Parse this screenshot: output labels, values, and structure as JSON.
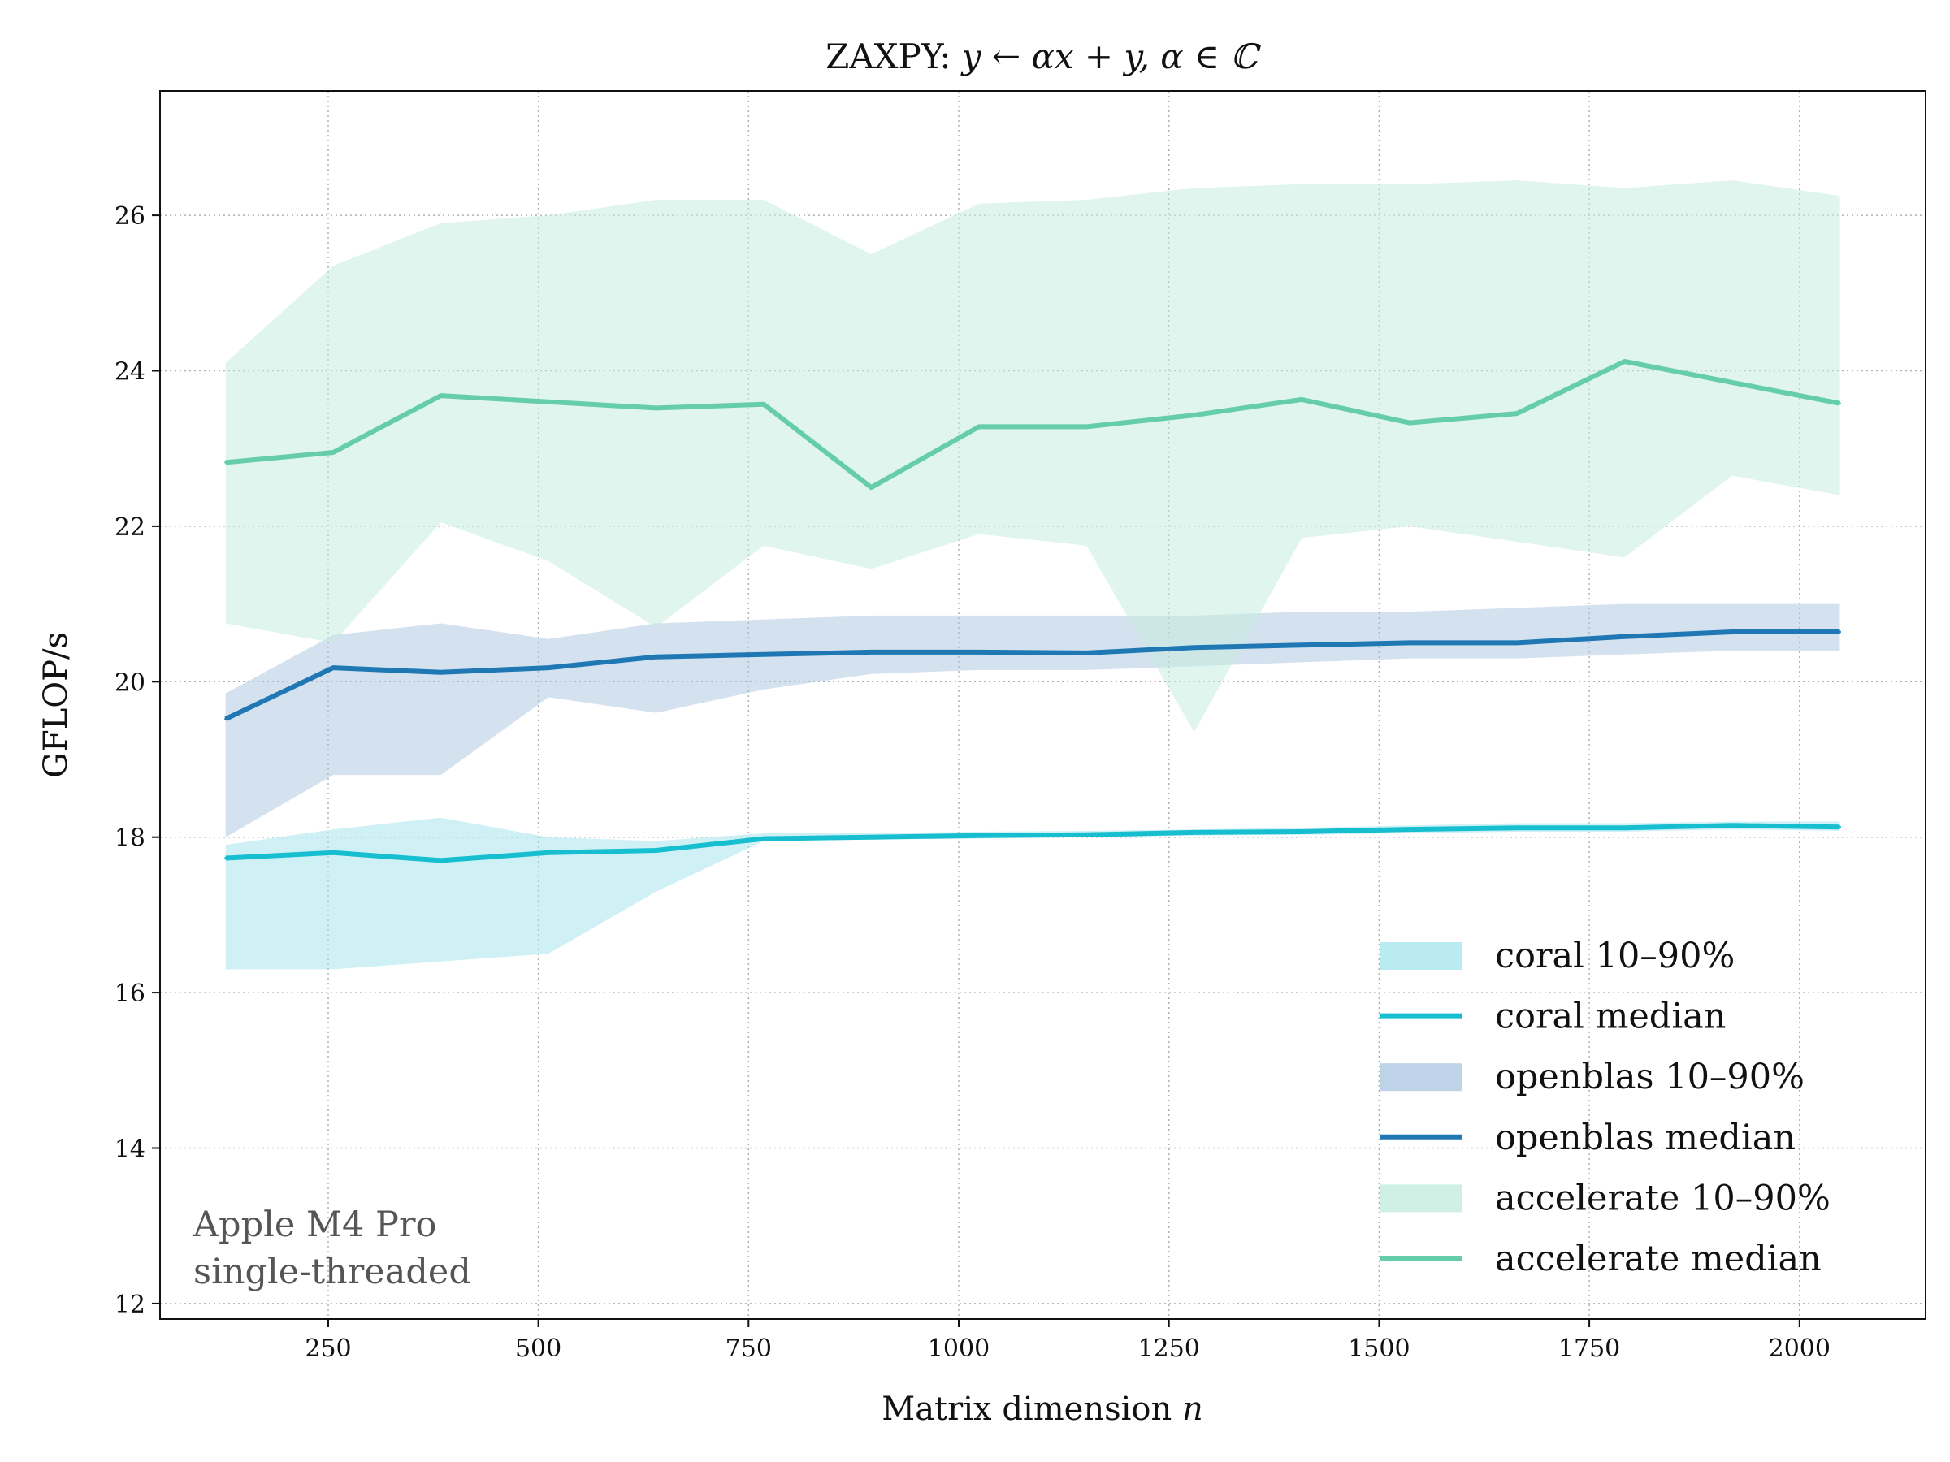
{
  "chart_data": {
    "type": "line",
    "title_prefix": "ZAXPY: ",
    "title_formula": "y ← αx + y,   α ∈ ℂ",
    "xlabel_prefix": "Matrix dimension ",
    "xlabel_var": "n",
    "ylabel": "GFLOP/s",
    "xlim": [
      50,
      2150
    ],
    "ylim": [
      11.8,
      27.6
    ],
    "xticks": [
      250,
      500,
      750,
      1000,
      1250,
      1500,
      1750,
      2000
    ],
    "yticks": [
      12,
      14,
      16,
      18,
      20,
      22,
      24,
      26
    ],
    "grid": true,
    "legend_position": "bottom-right",
    "annotation": [
      "Apple M4 Pro",
      "single-threaded"
    ],
    "x": [
      128,
      256,
      384,
      512,
      640,
      768,
      896,
      1024,
      1152,
      1280,
      1408,
      1536,
      1664,
      1792,
      1920,
      2048
    ],
    "series": [
      {
        "name": "coral",
        "color": "#17becf",
        "band_color": "#a8e6ee",
        "band_opacity": 0.55,
        "median": [
          17.73,
          17.8,
          17.7,
          17.8,
          17.83,
          17.98,
          18.0,
          18.02,
          18.03,
          18.06,
          18.07,
          18.1,
          18.12,
          18.12,
          18.15,
          18.13
        ],
        "p10": [
          16.3,
          16.3,
          16.4,
          16.5,
          17.3,
          17.95,
          17.97,
          17.98,
          18.0,
          18.02,
          18.03,
          18.05,
          18.07,
          18.07,
          18.1,
          18.08
        ],
        "p90": [
          17.9,
          18.1,
          18.25,
          18.0,
          17.95,
          18.05,
          18.05,
          18.07,
          18.08,
          18.1,
          18.12,
          18.15,
          18.18,
          18.18,
          18.2,
          18.2
        ]
      },
      {
        "name": "openblas",
        "color": "#1f77b4",
        "band_color": "#a9c4e0",
        "band_opacity": 0.5,
        "median": [
          19.52,
          20.18,
          20.12,
          20.18,
          20.32,
          20.35,
          20.38,
          20.38,
          20.37,
          20.44,
          20.47,
          20.5,
          20.5,
          20.58,
          20.64,
          20.64
        ],
        "p10": [
          18.0,
          18.8,
          18.8,
          19.8,
          19.6,
          19.9,
          20.1,
          20.15,
          20.15,
          20.2,
          20.25,
          20.3,
          20.3,
          20.35,
          20.4,
          20.4
        ],
        "p90": [
          19.85,
          20.6,
          20.75,
          20.55,
          20.75,
          20.8,
          20.85,
          20.85,
          20.85,
          20.85,
          20.9,
          20.9,
          20.95,
          21.0,
          21.0,
          21.0
        ]
      },
      {
        "name": "accelerate",
        "color": "#66cdaa",
        "band_color": "#c4ecdf",
        "band_opacity": 0.55,
        "median": [
          22.82,
          22.95,
          23.68,
          23.6,
          23.52,
          23.57,
          22.5,
          23.28,
          23.28,
          23.43,
          23.63,
          23.33,
          23.45,
          24.12,
          23.85,
          23.58
        ],
        "p10": [
          20.75,
          20.5,
          22.05,
          21.55,
          20.7,
          21.75,
          21.45,
          21.9,
          21.75,
          19.35,
          21.85,
          22.0,
          21.8,
          21.6,
          22.65,
          22.4
        ],
        "p90": [
          24.1,
          25.35,
          25.9,
          26.0,
          26.2,
          26.2,
          25.5,
          26.15,
          26.2,
          26.35,
          26.4,
          26.4,
          26.45,
          26.35,
          26.45,
          26.25
        ]
      }
    ],
    "legend": [
      {
        "label": "coral 10–90%",
        "kind": "band",
        "series": 0
      },
      {
        "label": "coral median",
        "kind": "line",
        "series": 0
      },
      {
        "label": "openblas 10–90%",
        "kind": "band",
        "series": 1
      },
      {
        "label": "openblas median",
        "kind": "line",
        "series": 1
      },
      {
        "label": "accelerate 10–90%",
        "kind": "band",
        "series": 2
      },
      {
        "label": "accelerate median",
        "kind": "line",
        "series": 2
      }
    ]
  }
}
